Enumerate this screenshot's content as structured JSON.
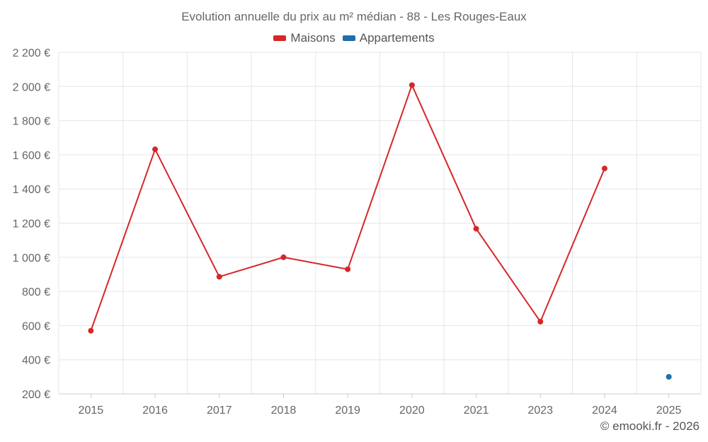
{
  "chart_data": {
    "type": "line",
    "title": "Evolution annuelle du prix au m² médian - 88 - Les Rouges-Eaux",
    "categories": [
      "2015",
      "2016",
      "2017",
      "2018",
      "2019",
      "2020",
      "2021",
      "2023",
      "2024",
      "2025"
    ],
    "series": [
      {
        "name": "Maisons",
        "color": "#d62728",
        "values": [
          570,
          1632,
          886,
          1000,
          930,
          2008,
          1167,
          623,
          1520,
          null
        ]
      },
      {
        "name": "Appartements",
        "color": "#1f6fa8",
        "values": [
          null,
          null,
          null,
          null,
          null,
          null,
          null,
          null,
          null,
          300
        ]
      }
    ],
    "ylim": [
      200,
      2200
    ],
    "yticks": [
      200,
      400,
      600,
      800,
      1000,
      1200,
      1400,
      1600,
      1800,
      2000,
      2200
    ],
    "ytick_labels": [
      "200 €",
      "400 €",
      "600 €",
      "800 €",
      "1 000 €",
      "1 200 €",
      "1 400 €",
      "1 600 €",
      "1 800 €",
      "2 000 €",
      "2 200 €"
    ],
    "xlabel": "",
    "ylabel": "",
    "grid": true,
    "legend_position": "top-center"
  },
  "credit": "© emooki.fr - 2026"
}
